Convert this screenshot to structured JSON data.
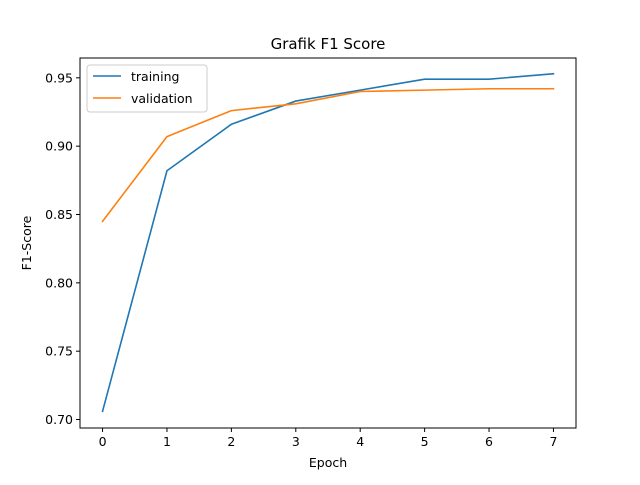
{
  "chart_data": {
    "type": "line",
    "title": "Grafik F1 Score",
    "xlabel": "Epoch",
    "ylabel": "F1-Score",
    "x": [
      0,
      1,
      2,
      3,
      4,
      5,
      6,
      7
    ],
    "xlim": [
      -0.35,
      7.35
    ],
    "ylim": [
      0.6938,
      0.9645
    ],
    "xticks": [
      0,
      1,
      2,
      3,
      4,
      5,
      6,
      7
    ],
    "xtick_labels": [
      "0",
      "1",
      "2",
      "3",
      "4",
      "5",
      "6",
      "7"
    ],
    "yticks": [
      0.7,
      0.75,
      0.8,
      0.85,
      0.9,
      0.95
    ],
    "ytick_labels": [
      "0.70",
      "0.75",
      "0.80",
      "0.85",
      "0.90",
      "0.95"
    ],
    "grid": false,
    "legend_position": "top-left",
    "series": [
      {
        "name": "training",
        "color": "#1f77b4",
        "values": [
          0.706,
          0.882,
          0.916,
          0.933,
          0.941,
          0.949,
          0.949,
          0.953
        ]
      },
      {
        "name": "validation",
        "color": "#ff7f0e",
        "values": [
          0.845,
          0.907,
          0.926,
          0.931,
          0.94,
          0.941,
          0.942,
          0.942
        ]
      }
    ]
  }
}
